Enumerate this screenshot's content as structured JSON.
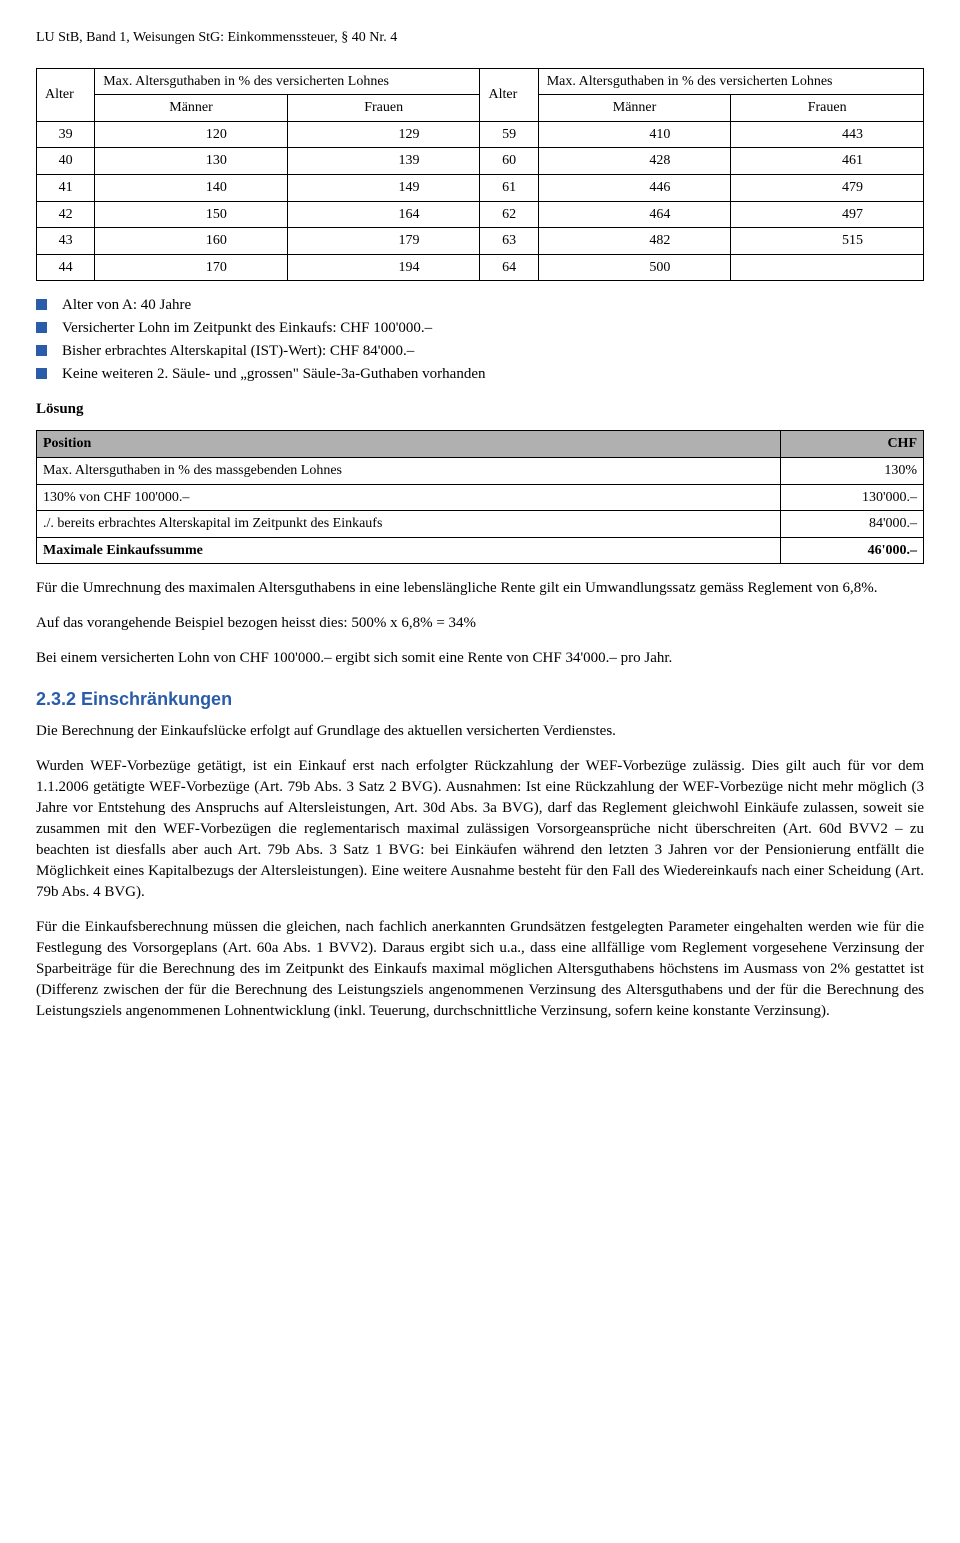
{
  "header": "LU StB, Band 1, Weisungen StG: Einkommenssteuer, § 40 Nr. 4",
  "table1": {
    "head": {
      "alter_l": "Alter",
      "max_l": "Max. Altersguthaben in % des versicherten Lohnes",
      "alter_r": "Alter",
      "max_r": "Max. Altersguthaben in % des versicherten Lohnes",
      "manner": "Männer",
      "frauen": "Frauen"
    },
    "rows": [
      [
        "39",
        "120",
        "129",
        "59",
        "410",
        "443"
      ],
      [
        "40",
        "130",
        "139",
        "60",
        "428",
        "461"
      ],
      [
        "41",
        "140",
        "149",
        "61",
        "446",
        "479"
      ],
      [
        "42",
        "150",
        "164",
        "62",
        "464",
        "497"
      ],
      [
        "43",
        "160",
        "179",
        "63",
        "482",
        "515"
      ],
      [
        "44",
        "170",
        "194",
        "64",
        "500",
        ""
      ]
    ]
  },
  "bullets": {
    "b1": "Alter von A: 40 Jahre",
    "b2": "Versicherter Lohn im Zeitpunkt des Einkaufs: CHF 100'000.–",
    "b3": "Bisher erbrachtes Alterskapital (IST)-Wert): CHF 84'000.–",
    "b4": "Keine weiteren 2. Säule- und „grossen\" Säule-3a-Guthaben vorhanden"
  },
  "losung": "Lösung",
  "table2": {
    "h1": "Position",
    "h2": "CHF",
    "r1a": "Max. Altersguthaben in % des massgebenden Lohnes",
    "r1b": "130%",
    "r2a": "130% von CHF 100'000.–",
    "r2b": "130'000.–",
    "r3a": "./. bereits erbrachtes Alterskapital im Zeitpunkt des Einkaufs",
    "r3b": "84'000.–",
    "r4a": "Maximale Einkaufssumme",
    "r4b": "46'000.–"
  },
  "p1": "Für die Umrechnung des maximalen Altersguthabens in eine lebenslängliche Rente gilt ein Umwandlungssatz gemäss Reglement von 6,8%.",
  "p2": "Auf das vorangehende Beispiel bezogen heisst dies: 500% x 6,8% = 34%",
  "p3": "Bei einem versicherten Lohn von CHF 100'000.– ergibt sich somit eine Rente von CHF 34'000.– pro Jahr.",
  "h232": "2.3.2 Einschränkungen",
  "p4": "Die Berechnung der Einkaufslücke erfolgt auf Grundlage des aktuellen versicherten Verdienstes.",
  "p5": "Wurden WEF-Vorbezüge getätigt, ist ein Einkauf erst nach erfolgter Rückzahlung der WEF-Vorbezüge zulässig. Dies gilt auch für vor dem 1.1.2006 getätigte WEF-Vorbezüge (Art. 79b Abs. 3 Satz 2 BVG). Ausnahmen: Ist eine Rückzahlung der WEF-Vorbezüge nicht mehr möglich (3 Jahre vor Entstehung des Anspruchs auf Altersleistungen, Art. 30d Abs. 3a BVG), darf das Reglement gleichwohl Einkäufe zulassen, soweit sie zusammen mit den WEF-Vorbezügen die reglementarisch maximal zulässigen Vorsorgeansprüche nicht überschreiten (Art. 60d BVV2 – zu beachten ist diesfalls aber auch Art. 79b Abs. 3 Satz 1 BVG: bei Einkäufen während den letzten 3 Jahren vor der Pensionierung entfällt die Möglichkeit eines Kapitalbezugs der Altersleistungen). Eine weitere Ausnahme besteht für den Fall des Wiedereinkaufs nach einer Scheidung (Art. 79b Abs. 4 BVG).",
  "p6": "Für die Einkaufsberechnung müssen die gleichen, nach fachlich anerkannten Grundsätzen festgelegten Parameter eingehalten werden wie für die Festlegung des Vorsorgeplans (Art. 60a Abs. 1 BVV2). Daraus ergibt sich u.a., dass eine allfällige vom Reglement vorgesehene Verzinsung der Sparbeiträge für die Berechnung des im Zeitpunkt des Einkaufs maximal möglichen Altersguthabens höchstens im Ausmass von 2% gestattet ist (Differenz zwischen der für die Berechnung des Leistungsziels angenommenen Verzinsung des Altersguthabens und der für die Berechnung des Leistungsziels angenommenen Lohnentwicklung (inkl. Teuerung, durchschnittliche Verzinsung, sofern keine konstante Verzinsung)."
}
